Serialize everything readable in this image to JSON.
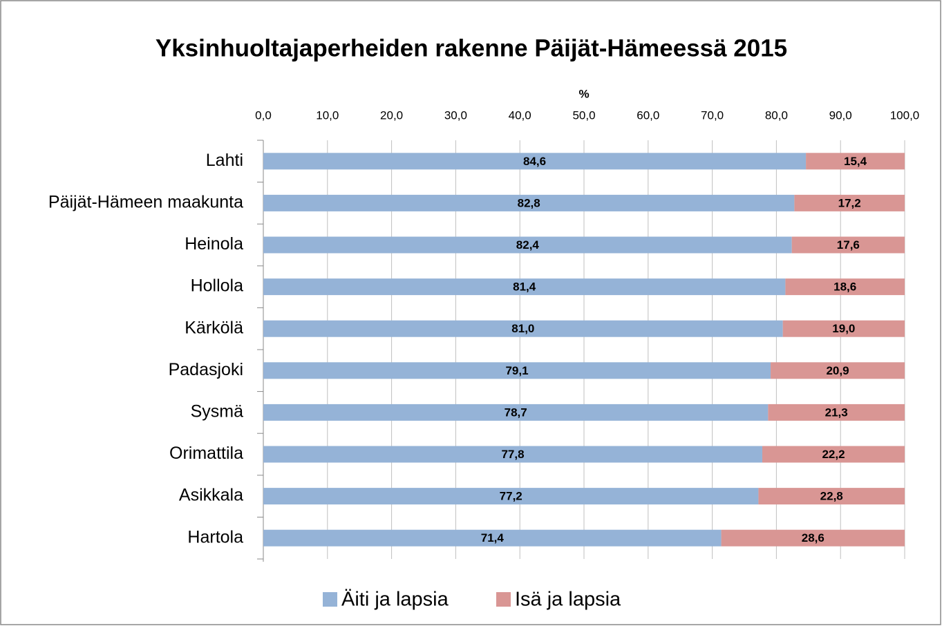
{
  "chart_data": {
    "type": "stacked-barh",
    "title": "Yksinhuoltajaperheiden rakenne Päijät-Hämeessä 2015",
    "xlabel": "%",
    "categories": [
      "Lahti",
      "Päijät-Hämeen maakunta",
      "Heinola",
      "Hollola",
      "Kärkölä",
      "Padasjoki",
      "Sysmä",
      "Orimattila",
      "Asikkala",
      "Hartola"
    ],
    "series": [
      {
        "name": "Äiti ja lapsia",
        "color": "#95b3d7",
        "values": [
          84.6,
          82.8,
          82.4,
          81.4,
          81.0,
          79.1,
          78.7,
          77.8,
          77.2,
          71.4
        ],
        "value_labels": [
          "84,6",
          "82,8",
          "82,4",
          "81,4",
          "81,0",
          "79,1",
          "78,7",
          "77,8",
          "77,2",
          "71,4"
        ]
      },
      {
        "name": "Isä ja lapsia",
        "color": "#d99694",
        "values": [
          15.4,
          17.2,
          17.6,
          18.6,
          19.0,
          20.9,
          21.3,
          22.2,
          22.8,
          28.6
        ],
        "value_labels": [
          "15,4",
          "17,2",
          "17,6",
          "18,6",
          "19,0",
          "20,9",
          "21,3",
          "22,2",
          "22,8",
          "28,6"
        ]
      }
    ],
    "xlim": [
      0,
      100
    ],
    "xticks": [
      {
        "value": 0,
        "label": "0,0"
      },
      {
        "value": 10,
        "label": "10,0"
      },
      {
        "value": 20,
        "label": "20,0"
      },
      {
        "value": 30,
        "label": "30,0"
      },
      {
        "value": 40,
        "label": "40,0"
      },
      {
        "value": 50,
        "label": "50,0"
      },
      {
        "value": 60,
        "label": "60,0"
      },
      {
        "value": 70,
        "label": "70,0"
      },
      {
        "value": 80,
        "label": "80,0"
      },
      {
        "value": 90,
        "label": "90,0"
      },
      {
        "value": 100,
        "label": "100,0"
      }
    ],
    "grid": true,
    "legend": "bottom"
  }
}
